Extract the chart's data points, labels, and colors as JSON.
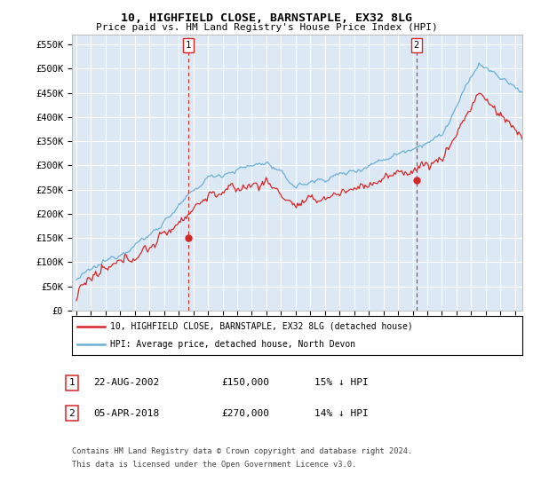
{
  "title": "10, HIGHFIELD CLOSE, BARNSTAPLE, EX32 8LG",
  "subtitle": "Price paid vs. HM Land Registry's House Price Index (HPI)",
  "ylim": [
    0,
    570000
  ],
  "yticks": [
    0,
    50000,
    100000,
    150000,
    200000,
    250000,
    300000,
    350000,
    400000,
    450000,
    500000,
    550000
  ],
  "ytick_labels": [
    "£0",
    "£50K",
    "£100K",
    "£150K",
    "£200K",
    "£250K",
    "£300K",
    "£350K",
    "£400K",
    "£450K",
    "£500K",
    "£550K"
  ],
  "xlim_start": 1994.7,
  "xlim_end": 2025.5,
  "xticks": [
    1995,
    1996,
    1997,
    1998,
    1999,
    2000,
    2001,
    2002,
    2003,
    2004,
    2005,
    2006,
    2007,
    2008,
    2009,
    2010,
    2011,
    2012,
    2013,
    2014,
    2015,
    2016,
    2017,
    2018,
    2019,
    2020,
    2021,
    2022,
    2023,
    2024,
    2025
  ],
  "hpi_color": "#6baed6",
  "price_color": "#d62728",
  "marker1_year": 2002.64,
  "marker2_year": 2018.25,
  "marker1_price": 150000,
  "marker2_price": 270000,
  "legend_label1": "10, HIGHFIELD CLOSE, BARNSTAPLE, EX32 8LG (detached house)",
  "legend_label2": "HPI: Average price, detached house, North Devon",
  "table_row1": [
    "1",
    "22-AUG-2002",
    "£150,000",
    "15% ↓ HPI"
  ],
  "table_row2": [
    "2",
    "05-APR-2018",
    "£270,000",
    "14% ↓ HPI"
  ],
  "footnote1": "Contains HM Land Registry data © Crown copyright and database right 2024.",
  "footnote2": "This data is licensed under the Open Government Licence v3.0.",
  "background_color": "#ffffff",
  "plot_bg_color": "#dce9f5"
}
